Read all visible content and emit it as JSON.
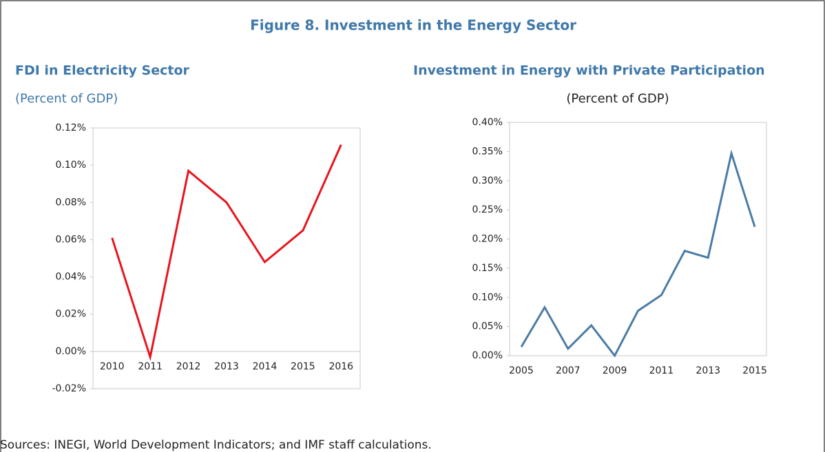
{
  "title": "Figure 8. Investment in the Energy Sector",
  "source": "Sources: INEGI, World Development Indicators; and IMF staff calculations.",
  "chart_data": [
    {
      "type": "line",
      "title": "FDI in Electricity Sector",
      "subtitle": "(Percent of GDP)",
      "categories": [
        "2010",
        "2011",
        "2012",
        "2013",
        "2014",
        "2015",
        "2016"
      ],
      "values": [
        0.061,
        -0.003,
        0.097,
        0.08,
        0.048,
        0.065,
        0.111
      ],
      "color": "#e8141c",
      "ylim": [
        -0.02,
        0.12
      ],
      "yticks": [
        {
          "value": -0.02,
          "label": "-0.02%"
        },
        {
          "value": 0,
          "label": "0.00%"
        },
        {
          "value": 0.02,
          "label": "0.02%"
        },
        {
          "value": 0.04,
          "label": "0.04%"
        },
        {
          "value": 0.06,
          "label": "0.06%"
        },
        {
          "value": 0.08,
          "label": "0.08%"
        },
        {
          "value": 0.1,
          "label": "0.10%"
        },
        {
          "value": 0.12,
          "label": "0.12%"
        }
      ]
    },
    {
      "type": "line",
      "title": "Investment in Energy with Private Participation",
      "subtitle": "(Percent of GDP)",
      "categories": [
        "2005",
        null,
        "2007",
        null,
        "2009",
        null,
        "2011",
        null,
        "2013",
        null,
        "2015"
      ],
      "values": [
        0.015,
        0.083,
        0.012,
        0.052,
        0.0,
        0.077,
        0.104,
        0.18,
        0.168,
        0.347,
        0.221
      ],
      "color": "#4a7ba6",
      "ylim": [
        0,
        0.4
      ],
      "yticks": [
        {
          "value": 0,
          "label": "0.00%"
        },
        {
          "value": 0.05,
          "label": "0.05%"
        },
        {
          "value": 0.1,
          "label": "0.10%"
        },
        {
          "value": 0.15,
          "label": "0.15%"
        },
        {
          "value": 0.2,
          "label": "0.20%"
        },
        {
          "value": 0.25,
          "label": "0.25%"
        },
        {
          "value": 0.3,
          "label": "0.30%"
        },
        {
          "value": 0.35,
          "label": "0.35%"
        },
        {
          "value": 0.4,
          "label": "0.40%"
        }
      ]
    }
  ]
}
